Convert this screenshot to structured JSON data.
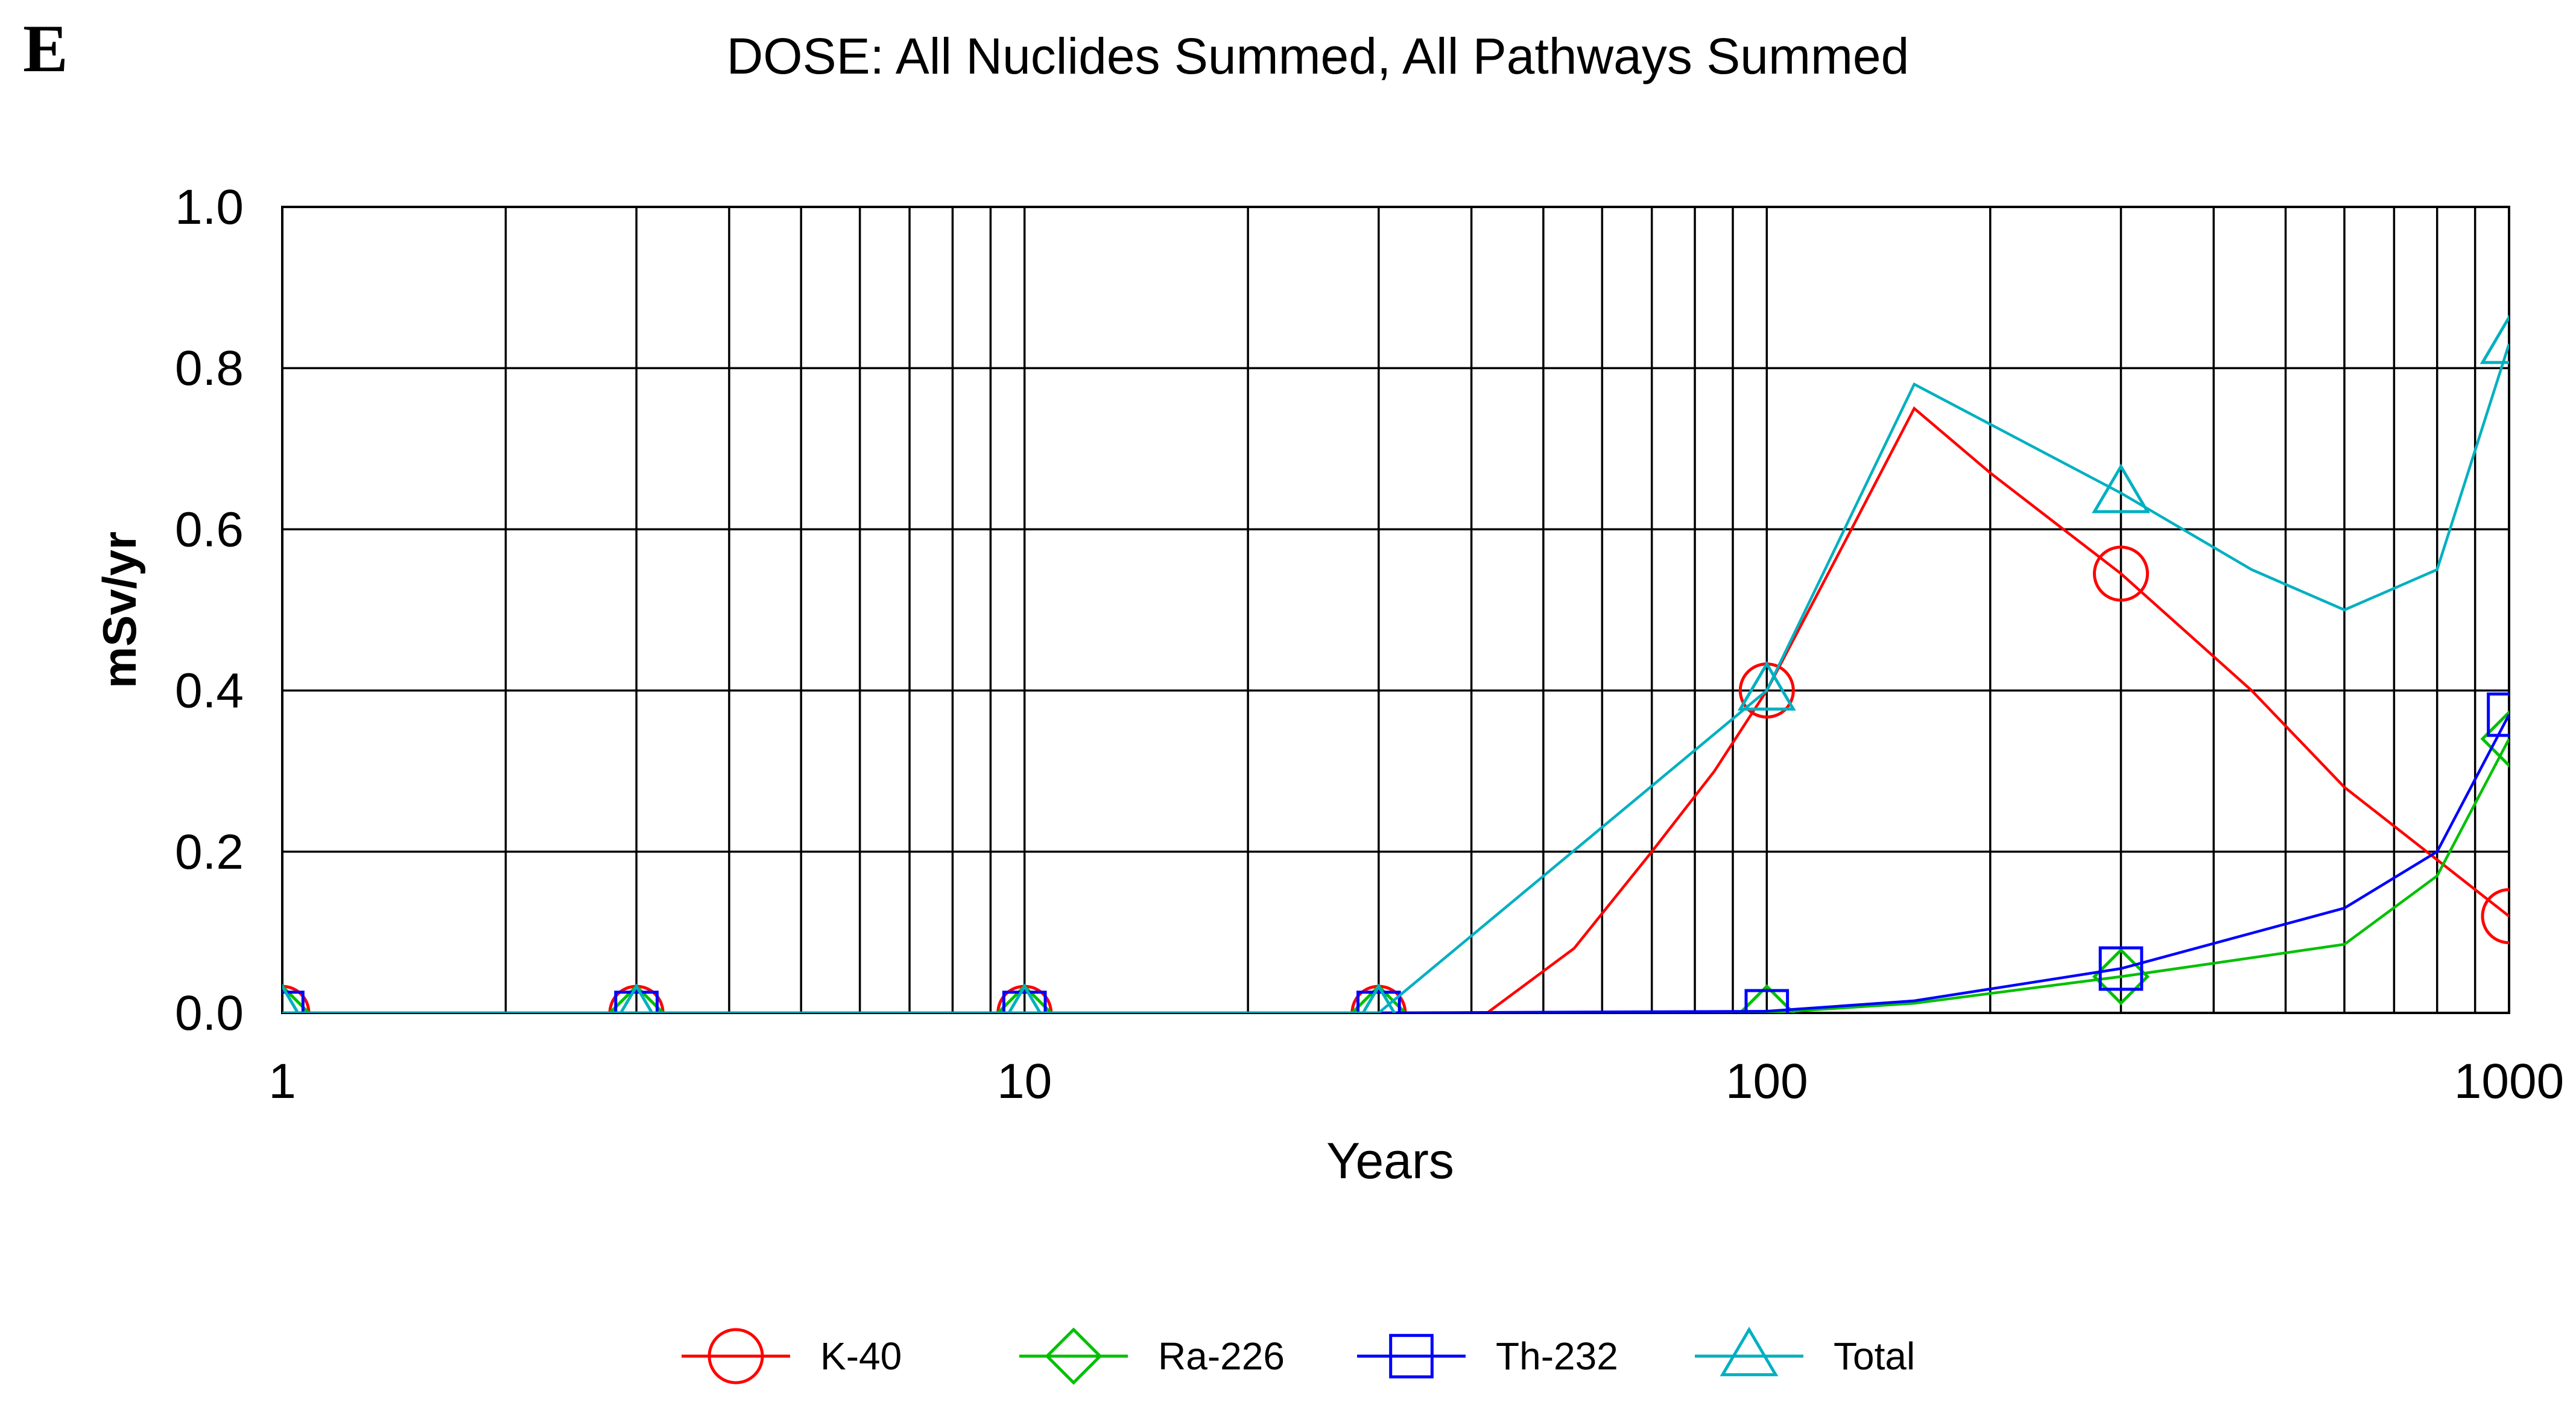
{
  "panel_label": "E",
  "chart_data": {
    "type": "line",
    "title": "DOSE: All Nuclides Summed, All Pathways Summed",
    "xlabel": "Years",
    "ylabel": "mSv/yr",
    "x_scale": "log",
    "xlim": [
      1,
      1000
    ],
    "ylim": [
      0,
      1.0
    ],
    "x_tick_labels": [
      "1",
      "10",
      "100",
      "1000"
    ],
    "y_tick_labels": [
      "0.0",
      "0.2",
      "0.4",
      "0.6",
      "0.8",
      "1.0"
    ],
    "grid": true,
    "legend_position": "bottom",
    "series": [
      {
        "name": "K-40",
        "color": "#ff0000",
        "marker": "circle",
        "line": [
          [
            1,
            0
          ],
          [
            3,
            0
          ],
          [
            10,
            0
          ],
          [
            30,
            0
          ],
          [
            42,
            0
          ],
          [
            55,
            0.08
          ],
          [
            70,
            0.2
          ],
          [
            85,
            0.3
          ],
          [
            100,
            0.4
          ],
          [
            130,
            0.6
          ],
          [
            158,
            0.75
          ],
          [
            200,
            0.67
          ],
          [
            300,
            0.545
          ],
          [
            450,
            0.4
          ],
          [
            600,
            0.28
          ],
          [
            800,
            0.19
          ],
          [
            1000,
            0.12
          ]
        ],
        "markers": [
          [
            1,
            0
          ],
          [
            3,
            0
          ],
          [
            10,
            0
          ],
          [
            30,
            0
          ],
          [
            100,
            0.4
          ],
          [
            300,
            0.545
          ],
          [
            1000,
            0.12
          ]
        ]
      },
      {
        "name": "Ra-226",
        "color": "#00c000",
        "marker": "diamond",
        "line": [
          [
            1,
            0
          ],
          [
            3,
            0
          ],
          [
            10,
            0
          ],
          [
            30,
            0
          ],
          [
            100,
            0
          ],
          [
            158,
            0.012
          ],
          [
            300,
            0.045
          ],
          [
            600,
            0.085
          ],
          [
            800,
            0.17
          ],
          [
            1000,
            0.34
          ]
        ],
        "markers": [
          [
            1,
            0
          ],
          [
            3,
            0
          ],
          [
            10,
            0
          ],
          [
            30,
            0
          ],
          [
            100,
            0
          ],
          [
            300,
            0.045
          ],
          [
            1000,
            0.34
          ]
        ]
      },
      {
        "name": "Th-232",
        "color": "#0000ff",
        "marker": "square",
        "line": [
          [
            1,
            0
          ],
          [
            3,
            0
          ],
          [
            10,
            0
          ],
          [
            30,
            0
          ],
          [
            100,
            0.002
          ],
          [
            158,
            0.015
          ],
          [
            300,
            0.055
          ],
          [
            600,
            0.13
          ],
          [
            800,
            0.2
          ],
          [
            1000,
            0.37
          ]
        ],
        "markers": [
          [
            1,
            0
          ],
          [
            3,
            0
          ],
          [
            10,
            0
          ],
          [
            30,
            0
          ],
          [
            100,
            0.002
          ],
          [
            300,
            0.055
          ],
          [
            1000,
            0.37
          ]
        ]
      },
      {
        "name": "Total",
        "color": "#00b0c0",
        "marker": "triangle",
        "line": [
          [
            1,
            0
          ],
          [
            3,
            0
          ],
          [
            10,
            0
          ],
          [
            30,
            0
          ],
          [
            100,
            0.4
          ],
          [
            158,
            0.78
          ],
          [
            300,
            0.645
          ],
          [
            450,
            0.55
          ],
          [
            600,
            0.5
          ],
          [
            800,
            0.55
          ],
          [
            1000,
            0.83
          ]
        ],
        "markers": [
          [
            1,
            0
          ],
          [
            3,
            0
          ],
          [
            10,
            0
          ],
          [
            30,
            0
          ],
          [
            100,
            0.4
          ],
          [
            300,
            0.645
          ],
          [
            1000,
            0.83
          ]
        ]
      }
    ]
  }
}
